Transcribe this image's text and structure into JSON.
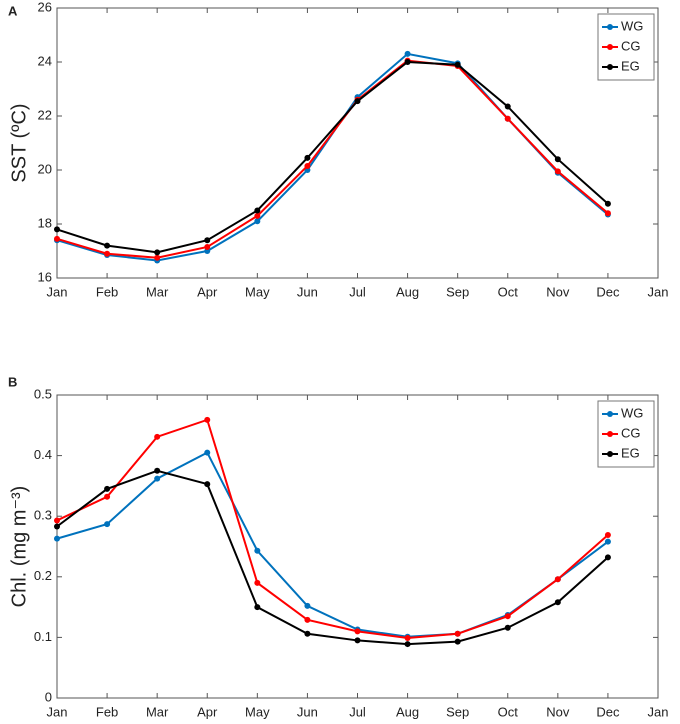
{
  "chart_data": [
    {
      "type": "line",
      "panel": "A",
      "ylabel": "SST (ºC)",
      "categories": [
        "Jan",
        "Feb",
        "Mar",
        "Apr",
        "May",
        "Jun",
        "Jul",
        "Aug",
        "Sep",
        "Oct",
        "Nov",
        "Dec",
        "Jan"
      ],
      "ylim": [
        16,
        26
      ],
      "yticks": [
        16,
        18,
        20,
        22,
        24,
        26
      ],
      "legend": "upper right",
      "series": [
        {
          "name": "WG",
          "color": "#0072bd",
          "values": [
            17.4,
            16.85,
            16.65,
            17.0,
            18.1,
            20.0,
            22.7,
            24.3,
            23.95,
            21.9,
            19.9,
            18.35,
            null
          ]
        },
        {
          "name": "CG",
          "color": "#ff0000",
          "values": [
            17.45,
            16.9,
            16.75,
            17.15,
            18.3,
            20.15,
            22.6,
            24.05,
            23.85,
            21.9,
            19.95,
            18.4,
            null
          ]
        },
        {
          "name": "EG",
          "color": "#000000",
          "values": [
            17.8,
            17.2,
            16.95,
            17.4,
            18.5,
            20.45,
            22.55,
            24.0,
            23.9,
            22.35,
            20.4,
            18.75,
            null
          ]
        }
      ]
    },
    {
      "type": "line",
      "panel": "B",
      "ylabel": "Chl. (mg m⁻³)",
      "categories": [
        "Jan",
        "Feb",
        "Mar",
        "Apr",
        "May",
        "Jun",
        "Jul",
        "Aug",
        "Sep",
        "Oct",
        "Nov",
        "Dec",
        "Jan"
      ],
      "ylim": [
        0,
        0.5
      ],
      "yticks": [
        0,
        0.1,
        0.2,
        0.3,
        0.4,
        0.5
      ],
      "legend": "upper right",
      "series": [
        {
          "name": "WG",
          "color": "#0072bd",
          "values": [
            0.263,
            0.287,
            0.362,
            0.405,
            0.243,
            0.152,
            0.113,
            0.101,
            0.106,
            0.137,
            0.196,
            0.258,
            null
          ]
        },
        {
          "name": "CG",
          "color": "#ff0000",
          "values": [
            0.293,
            0.332,
            0.431,
            0.459,
            0.19,
            0.129,
            0.11,
            0.099,
            0.106,
            0.135,
            0.196,
            0.269,
            null
          ]
        },
        {
          "name": "EG",
          "color": "#000000",
          "values": [
            0.283,
            0.345,
            0.375,
            0.353,
            0.15,
            0.106,
            0.095,
            0.089,
            0.093,
            0.116,
            0.158,
            0.232,
            null
          ]
        }
      ]
    }
  ]
}
